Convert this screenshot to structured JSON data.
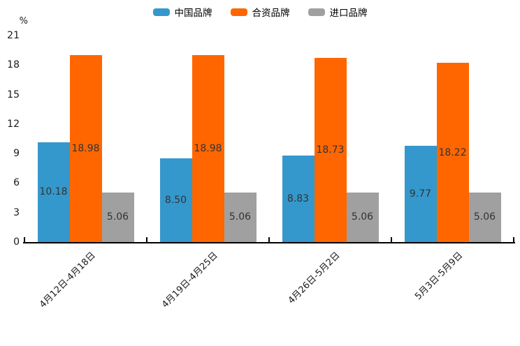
{
  "chart_data": {
    "type": "bar",
    "title": "",
    "unit": "%",
    "categories": [
      "4月12日-4月18日",
      "4月19日-4月25日",
      "4月26日-5月2日",
      "5月3日-5月9日"
    ],
    "series": [
      {
        "name": "中国品牌",
        "color": "#3498CC",
        "values": [
          10.18,
          8.5,
          8.83,
          9.77
        ]
      },
      {
        "name": "合资品牌",
        "color": "#FF6600",
        "values": [
          18.98,
          18.98,
          18.73,
          18.22
        ]
      },
      {
        "name": "进口品牌",
        "color": "#A0A0A0",
        "values": [
          5.06,
          5.06,
          5.06,
          5.06
        ]
      }
    ],
    "ylim": [
      0,
      21
    ],
    "yticks": [
      0,
      3,
      6,
      9,
      12,
      15,
      18,
      21
    ],
    "legend_position": "top",
    "grid": false,
    "value_label_decimals": 2,
    "value_label_color": "#333333",
    "axis_color": "#000000"
  }
}
